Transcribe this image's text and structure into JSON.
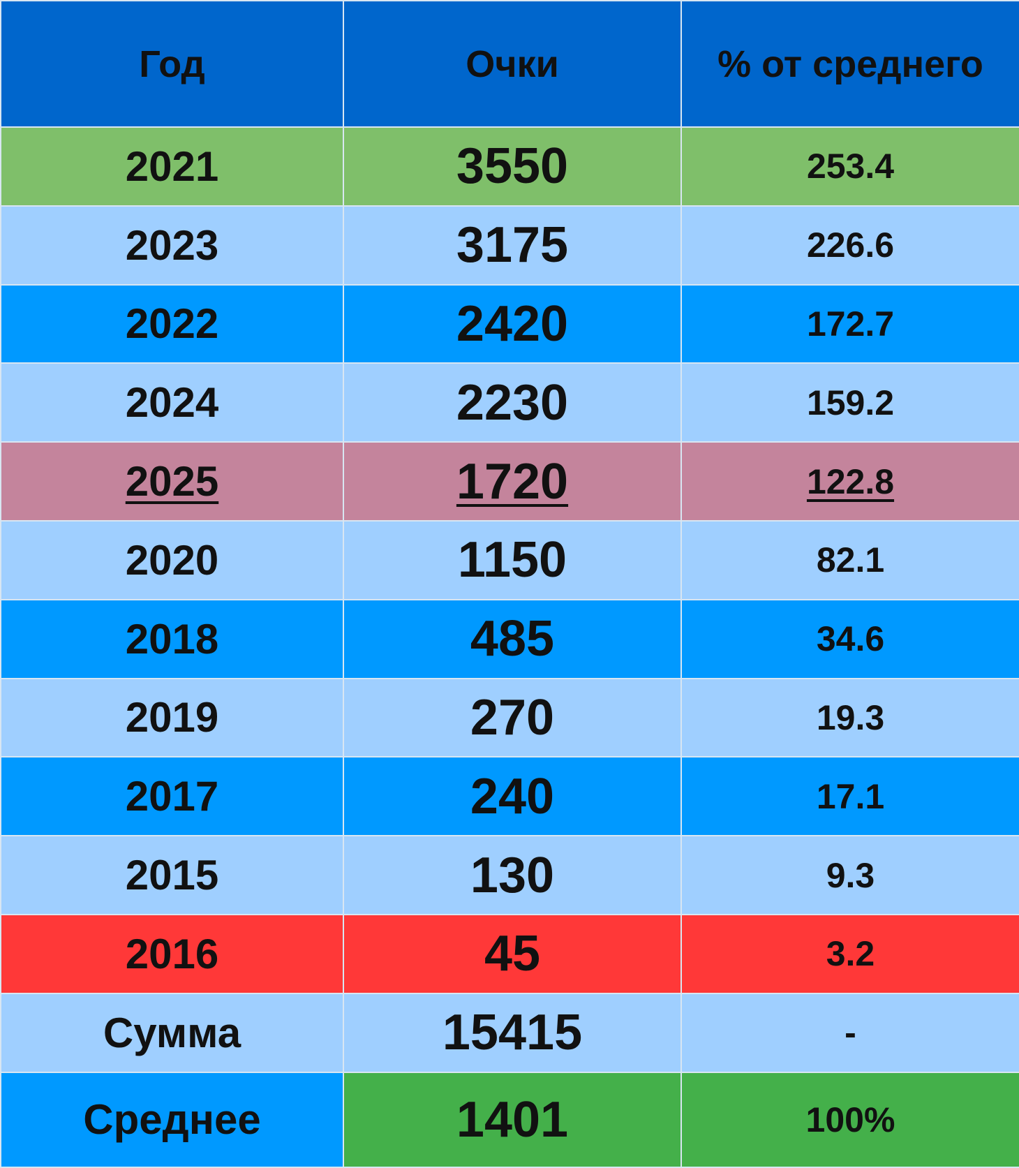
{
  "table": {
    "header": [
      "Год",
      "Очки",
      "% от среднего"
    ],
    "rows": [
      [
        2021,
        3550,
        253.4
      ],
      [
        2023,
        3175,
        226.6
      ],
      [
        2022,
        2420,
        172.7
      ],
      [
        2024,
        2230,
        159.2
      ],
      [
        2025,
        1720,
        122.8
      ],
      [
        2020,
        1150,
        82.1
      ],
      [
        2018,
        485,
        34.6
      ],
      [
        2019,
        270,
        19.3
      ],
      [
        2017,
        240,
        17.1
      ],
      [
        2015,
        130,
        9.3
      ],
      [
        2016,
        45,
        3.2
      ],
      [
        "Сумма",
        15415,
        "-"
      ],
      [
        "Среднее",
        1401,
        "100%"
      ]
    ]
  }
}
